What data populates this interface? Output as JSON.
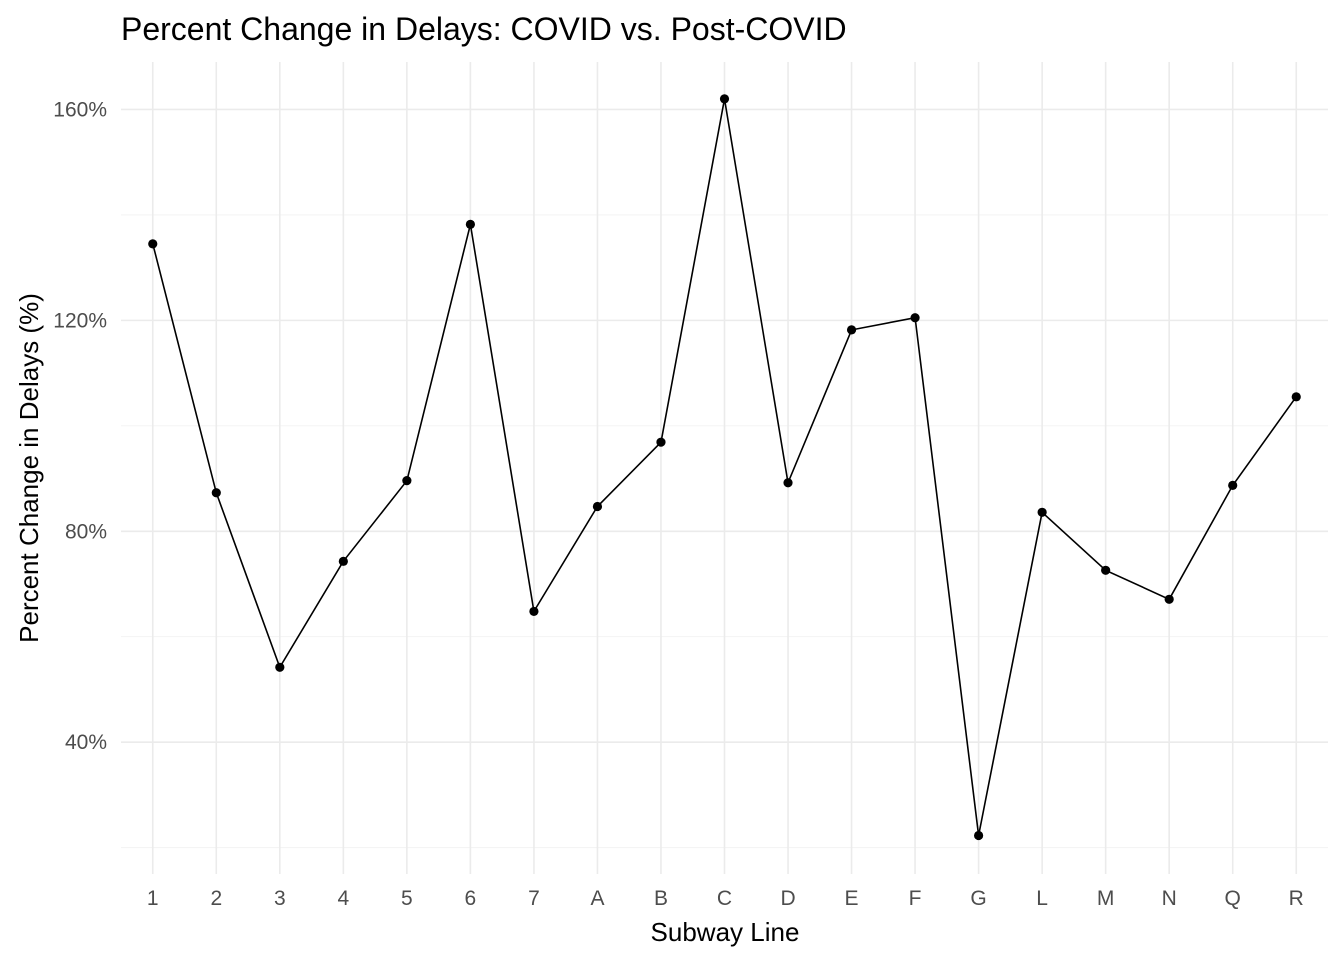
{
  "chart_data": {
    "type": "line",
    "title": "Percent Change in Delays: COVID vs. Post-COVID",
    "xlabel": "Subway Line",
    "ylabel": "Percent Change in Delays (%)",
    "categories": [
      "1",
      "2",
      "3",
      "4",
      "5",
      "6",
      "7",
      "A",
      "B",
      "C",
      "D",
      "E",
      "F",
      "G",
      "L",
      "M",
      "N",
      "Q",
      "R"
    ],
    "values": [
      134.5,
      87.3,
      54.2,
      74.3,
      89.6,
      138.2,
      64.8,
      84.7,
      96.9,
      162.0,
      89.2,
      118.2,
      120.5,
      22.3,
      83.6,
      72.6,
      67.1,
      88.7,
      105.5
    ],
    "yticks": [
      40,
      80,
      120,
      160
    ],
    "ytick_labels": [
      "40%",
      "80%",
      "120%",
      "160%"
    ],
    "ylim": [
      15,
      169
    ],
    "grid": true,
    "legend": "none",
    "colors": {
      "line": "#000000",
      "point": "#000000",
      "grid": "#ebebeb",
      "tick_text": "#4d4d4d"
    }
  }
}
